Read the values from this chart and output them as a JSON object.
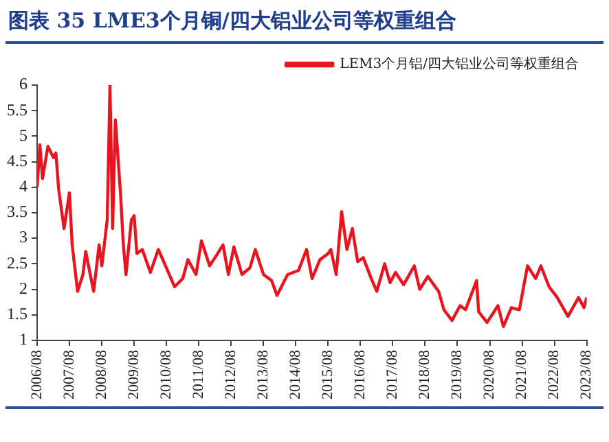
{
  "chart_data": {
    "type": "line",
    "title": "图表 35  LME3个月铜/四大铝业公司等权重组合",
    "x": [
      "2006-08",
      "2006-09",
      "2006-10",
      "2006-12",
      "2007-02",
      "2007-03",
      "2007-04",
      "2007-06",
      "2007-08",
      "2007-09",
      "2007-11",
      "2008-01",
      "2008-02",
      "2008-04",
      "2008-05",
      "2008-07",
      "2008-08",
      "2008-10",
      "2008-11",
      "2008-12",
      "2009-01",
      "2009-03",
      "2009-04",
      "2009-05",
      "2009-07",
      "2009-08",
      "2009-09",
      "2009-11",
      "2010-02",
      "2010-05",
      "2010-08",
      "2010-11",
      "2011-02",
      "2011-04",
      "2011-07",
      "2011-09",
      "2011-12",
      "2012-02",
      "2012-05",
      "2012-07",
      "2012-09",
      "2012-12",
      "2013-03",
      "2013-05",
      "2013-08",
      "2013-11",
      "2014-01",
      "2014-05",
      "2014-09",
      "2014-12",
      "2015-02",
      "2015-05",
      "2015-08",
      "2015-09",
      "2015-11",
      "2016-01",
      "2016-03",
      "2016-05",
      "2016-07",
      "2016-09",
      "2016-12",
      "2017-02",
      "2017-05",
      "2017-07",
      "2017-09",
      "2017-12",
      "2018-04",
      "2018-06",
      "2018-09",
      "2019-01",
      "2019-03",
      "2019-06",
      "2019-09",
      "2019-11",
      "2020-03-05",
      "2020-03-28",
      "2020-07",
      "2020-11",
      "2021-01",
      "2021-04",
      "2021-07",
      "2021-10",
      "2022-01",
      "2022-03",
      "2022-06",
      "2022-09",
      "2023-01",
      "2023-05",
      "2023-07",
      "2023-08"
    ],
    "series": [
      {
        "name": "LEM3个月铝/四大铝业公司等权重组合",
        "color": "#e8141e",
        "values": [
          4.0,
          4.83,
          4.17,
          4.8,
          4.58,
          4.67,
          3.97,
          3.19,
          3.89,
          2.87,
          1.96,
          2.29,
          2.74,
          2.21,
          1.96,
          2.87,
          2.46,
          3.36,
          6.0,
          3.19,
          5.32,
          3.85,
          2.87,
          2.29,
          3.36,
          3.44,
          2.7,
          2.78,
          2.33,
          2.78,
          2.42,
          2.05,
          2.21,
          2.58,
          2.29,
          2.95,
          2.46,
          2.62,
          2.87,
          2.29,
          2.83,
          2.29,
          2.42,
          2.78,
          2.29,
          2.17,
          1.88,
          2.29,
          2.37,
          2.78,
          2.21,
          2.58,
          2.7,
          2.78,
          2.29,
          3.52,
          2.78,
          3.19,
          2.54,
          2.62,
          2.21,
          1.96,
          2.5,
          2.13,
          2.33,
          2.09,
          2.46,
          2.0,
          2.25,
          1.96,
          1.6,
          1.39,
          1.68,
          1.6,
          2.17,
          1.56,
          1.35,
          1.68,
          1.27,
          1.64,
          1.6,
          2.46,
          2.21,
          2.46,
          2.05,
          1.84,
          1.47,
          1.84,
          1.64,
          1.84
        ]
      }
    ],
    "xlim": [
      "2006-08",
      "2023-08"
    ],
    "xticks": [
      {
        "value": "2006-08",
        "label": "2006/08"
      },
      {
        "value": "2007-08",
        "label": "2007/08"
      },
      {
        "value": "2008-08",
        "label": "2008/08"
      },
      {
        "value": "2009-08",
        "label": "2009/08"
      },
      {
        "value": "2010-08",
        "label": "2010/08"
      },
      {
        "value": "2011-08",
        "label": "2011/08"
      },
      {
        "value": "2012-08",
        "label": "2012/08"
      },
      {
        "value": "2013-08",
        "label": "2013/08"
      },
      {
        "value": "2014-08",
        "label": "2014/08"
      },
      {
        "value": "2015-08",
        "label": "2015/08"
      },
      {
        "value": "2016-08",
        "label": "2016/08"
      },
      {
        "value": "2017-08",
        "label": "2017/08"
      },
      {
        "value": "2018-08",
        "label": "2018/08"
      },
      {
        "value": "2019-08",
        "label": "2019/08"
      },
      {
        "value": "2020-08",
        "label": "2020/08"
      },
      {
        "value": "2021-08",
        "label": "2021/08"
      },
      {
        "value": "2022-08",
        "label": "2022/08"
      },
      {
        "value": "2023-08",
        "label": "2023/08"
      }
    ],
    "ylim": [
      1,
      6
    ],
    "yticks": [
      1,
      1.5,
      2,
      2.5,
      3,
      3.5,
      4,
      4.5,
      5,
      5.5,
      6
    ],
    "grid": false,
    "legend": "top",
    "marker": "none",
    "line_style": "solid"
  }
}
